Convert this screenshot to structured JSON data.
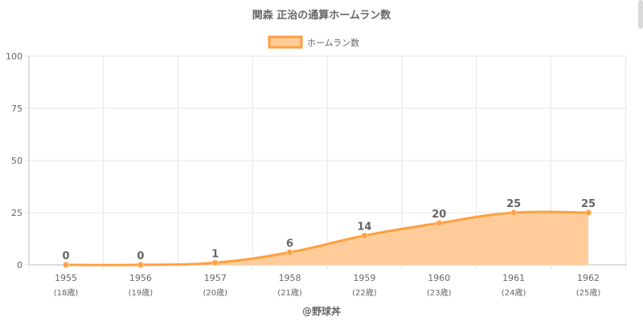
{
  "chart_data": {
    "type": "area",
    "title": "関森 正治の通算ホームラン数",
    "categories": [
      "1955",
      "1956",
      "1957",
      "1958",
      "1959",
      "1960",
      "1961",
      "1962"
    ],
    "category_sublabels": [
      "(18歳)",
      "(19歳)",
      "(20歳)",
      "(21歳)",
      "(22歳)",
      "(23歳)",
      "(24歳)",
      "(25歳)"
    ],
    "series": [
      {
        "name": "ホームラン数",
        "values": [
          0,
          0,
          1,
          6,
          14,
          20,
          25,
          25
        ]
      }
    ],
    "xlabel": "@野球丼",
    "ylabel": "",
    "ylim": [
      0,
      100
    ],
    "yticks": [
      0,
      25,
      50,
      75,
      100
    ],
    "grid": true,
    "legend": "top-center",
    "colors": {
      "line": "#ff9f40",
      "fill": "#ffcc99",
      "text": "#666666"
    }
  }
}
